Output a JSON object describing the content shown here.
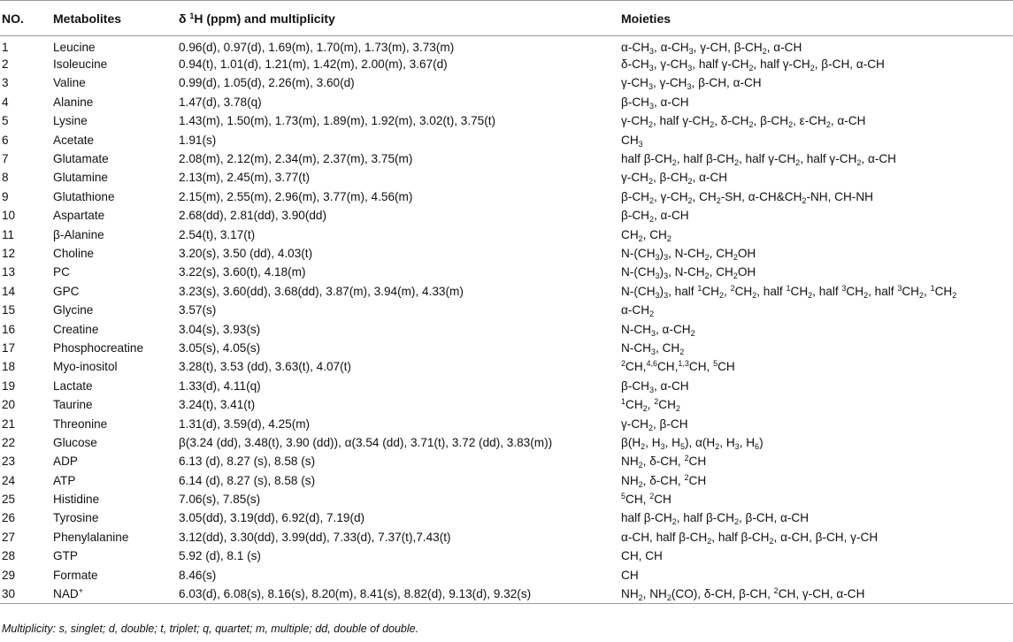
{
  "table": {
    "headers": {
      "no": "NO.",
      "metabolites": "Metabolites",
      "shift": "δ ¹H (ppm) and multiplicity",
      "moieties": "Moieties"
    },
    "rows": [
      {
        "no": "1",
        "name": "Leucine",
        "shift": "0.96(d), 0.97(d), 1.69(m), 1.70(m), 1.73(m), 3.73(m)",
        "moieties": "α-CH₃, α-CH₃, γ-CH, β-CH₂, α-CH"
      },
      {
        "no": "2",
        "name": "Isoleucine",
        "shift": "0.94(t), 1.01(d), 1.21(m), 1.42(m), 2.00(m), 3.67(d)",
        "moieties": "δ-CH₃, γ-CH₃, half γ-CH₂, half γ-CH₂, β-CH, α-CH"
      },
      {
        "no": "3",
        "name": "Valine",
        "shift": "0.99(d), 1.05(d), 2.26(m), 3.60(d)",
        "moieties": "γ-CH₃, γ-CH₃, β-CH, α-CH"
      },
      {
        "no": "4",
        "name": "Alanine",
        "shift": "1.47(d), 3.78(q)",
        "moieties": "β-CH₃, α-CH"
      },
      {
        "no": "5",
        "name": "Lysine",
        "shift": "1.43(m), 1.50(m), 1.73(m), 1.89(m), 1.92(m), 3.02(t), 3.75(t)",
        "moieties": "γ-CH₂, half γ-CH₂, δ-CH₂, β-CH₂, ε-CH₂, α-CH"
      },
      {
        "no": "6",
        "name": "Acetate",
        "shift": "1.91(s)",
        "moieties": "CH₃"
      },
      {
        "no": "7",
        "name": "Glutamate",
        "shift": "2.08(m), 2.12(m), 2.34(m), 2.37(m), 3.75(m)",
        "moieties": "half β-CH₂, half β-CH₂, half γ-CH₂, half γ-CH₂, α-CH"
      },
      {
        "no": "8",
        "name": "Glutamine",
        "shift": "2.13(m), 2.45(m), 3.77(t)",
        "moieties": "γ-CH₂, β-CH₂, α-CH"
      },
      {
        "no": "9",
        "name": "Glutathione",
        "shift": "2.15(m), 2.55(m), 2.96(m), 3.77(m), 4.56(m)",
        "moieties": "β-CH₂, γ-CH₂, CH₂-SH, α-CH&CH₂-NH, CH-NH"
      },
      {
        "no": "10",
        "name": "Aspartate",
        "shift": "2.68(dd), 2.81(dd), 3.90(dd)",
        "moieties": "β-CH₂, α-CH"
      },
      {
        "no": "11",
        "name": "β-Alanine",
        "shift": "2.54(t), 3.17(t)",
        "moieties": "CH₂, CH₂"
      },
      {
        "no": "12",
        "name": "Choline",
        "shift": "3.20(s), 3.50 (dd), 4.03(t)",
        "moieties": "N-(CH₃)₃, N-CH₂, CH₂OH"
      },
      {
        "no": "13",
        "name": "PC",
        "shift": "3.22(s), 3.60(t), 4.18(m)",
        "moieties": "N-(CH₃)₃, N-CH₂, CH₂OH"
      },
      {
        "no": "14",
        "name": "GPC",
        "shift": "3.23(s), 3.60(dd), 3.68(dd), 3.87(m), 3.94(m), 4.33(m)",
        "moieties": "N-(CH₃)₃, half ¹CH₂, ²CH₂, half ¹CH₂, half ³CH₂, half ³CH₂, ¹CH₂"
      },
      {
        "no": "15",
        "name": "Glycine",
        "shift": "3.57(s)",
        "moieties": "α-CH₂"
      },
      {
        "no": "16",
        "name": "Creatine",
        "shift": "3.04(s), 3.93(s)",
        "moieties": "N-CH₃, α-CH₂"
      },
      {
        "no": "17",
        "name": "Phosphocreatine",
        "shift": "3.05(s), 4.05(s)",
        "moieties": "N-CH₃, CH₂"
      },
      {
        "no": "18",
        "name": "Myo-inositol",
        "shift": "3.28(t), 3.53 (dd), 3.63(t), 4.07(t)",
        "moieties": "²CH,⁴·⁶CH,¹·³CH, ⁵CH"
      },
      {
        "no": "19",
        "name": "Lactate",
        "shift": "1.33(d), 4.11(q)",
        "moieties": "β-CH₃, α-CH"
      },
      {
        "no": "20",
        "name": "Taurine",
        "shift": "3.24(t), 3.41(t)",
        "moieties": "¹CH₂, ²CH₂"
      },
      {
        "no": "21",
        "name": "Threonine",
        "shift": "1.31(d), 3.59(d), 4.25(m)",
        "moieties": "γ-CH₂, β-CH"
      },
      {
        "no": "22",
        "name": "Glucose",
        "shift": "β(3.24 (dd), 3.48(t), 3.90 (dd)), α(3.54 (dd), 3.71(t), 3.72 (dd), 3.83(m))",
        "moieties": "β(H₂, H₃, H₅), α(H₂, H₃, H₆)"
      },
      {
        "no": "23",
        "name": "ADP",
        "shift": "6.13 (d), 8.27 (s), 8.58 (s)",
        "moieties": "NH₂, δ-CH, ²CH"
      },
      {
        "no": "24",
        "name": "ATP",
        "shift": "6.14 (d), 8.27 (s), 8.58 (s)",
        "moieties": "NH₂, δ-CH, ²CH"
      },
      {
        "no": "25",
        "name": "Histidine",
        "shift": "7.06(s), 7.85(s)",
        "moieties": "⁵CH, ²CH"
      },
      {
        "no": "26",
        "name": "Tyrosine",
        "shift": "3.05(dd), 3.19(dd), 6.92(d), 7.19(d)",
        "moieties": "half β-CH₂, half β-CH₂, β-CH, α-CH"
      },
      {
        "no": "27",
        "name": "Phenylalanine",
        "shift": "3.12(dd), 3.30(dd), 3.99(dd), 7.33(d), 7.37(t),7.43(t)",
        "moieties": "α-CH, half β-CH₂, half β-CH₂, α-CH, β-CH, γ-CH"
      },
      {
        "no": "28",
        "name": "GTP",
        "shift": "5.92 (d), 8.1 (s)",
        "moieties": "CH, CH"
      },
      {
        "no": "29",
        "name": "Formate",
        "shift": "8.46(s)",
        "moieties": "CH"
      },
      {
        "no": "30",
        "name": "NAD⁺",
        "shift": "6.03(d), 6.08(s), 8.16(s), 8.20(m), 8.41(s), 8.82(d), 9.13(d), 9.32(s)",
        "moieties": "NH₂, NH₂(CO), δ-CH, β-CH, ²CH, γ-CH, α-CH"
      }
    ]
  },
  "footnote": "Multiplicity: s, singlet; d, double; t, triplet; q, quartet; m, multiple; dd, double of double."
}
